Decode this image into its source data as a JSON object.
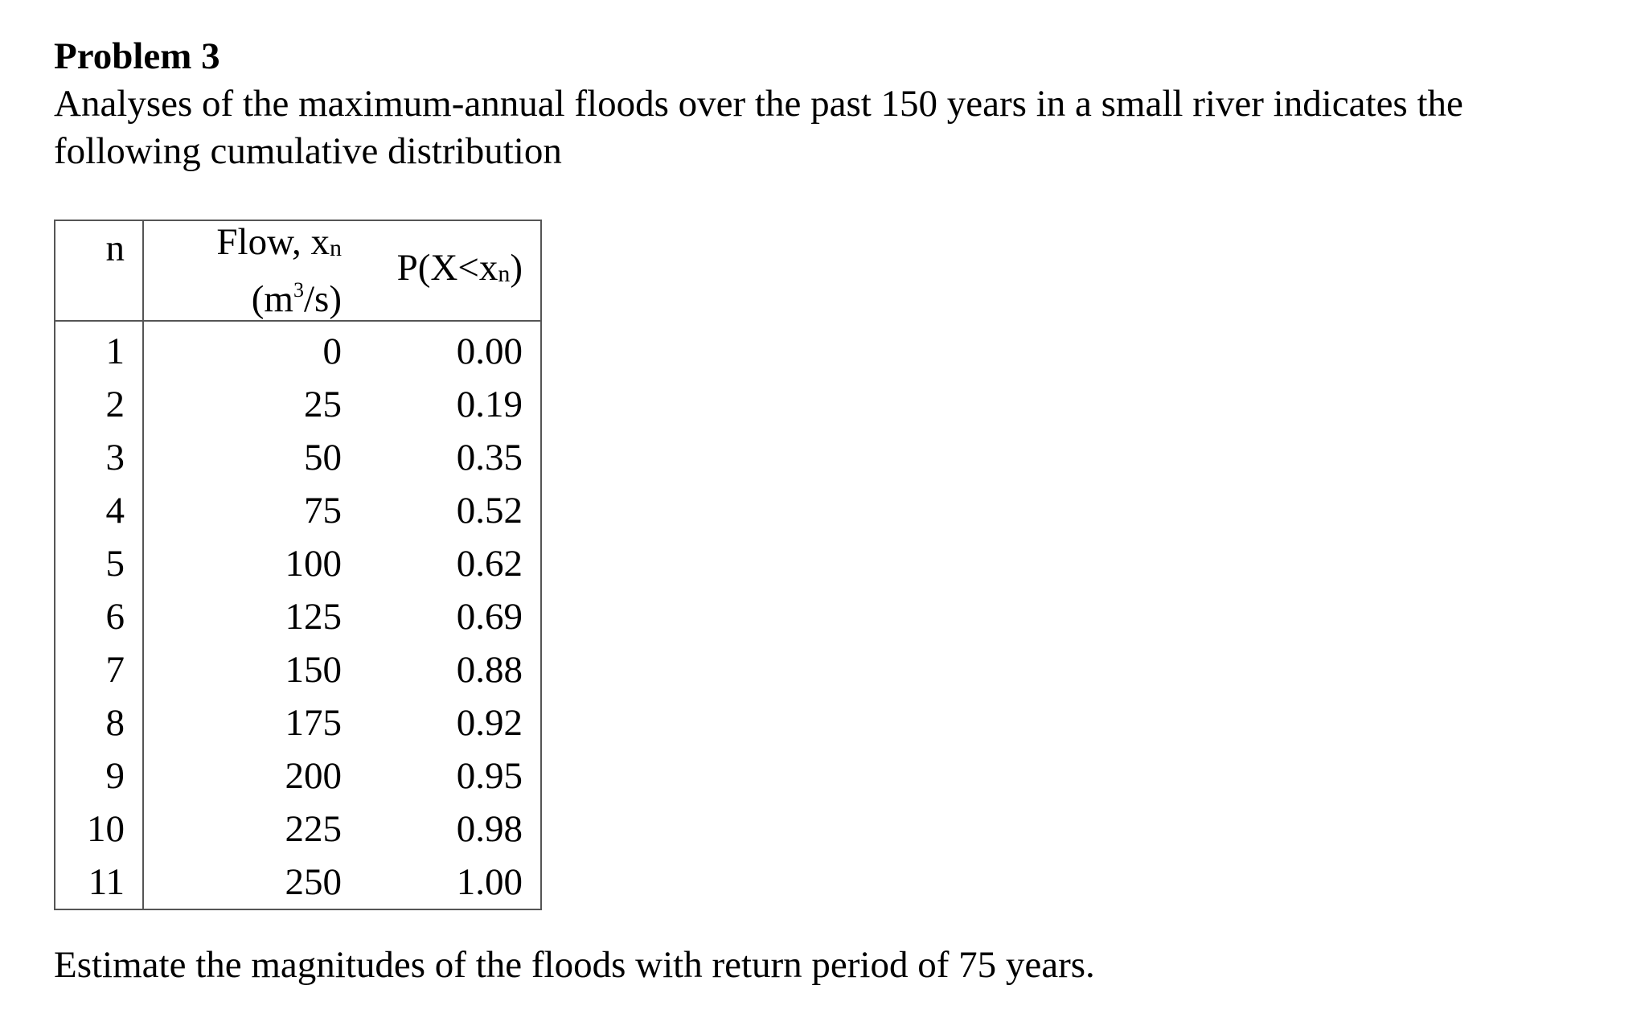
{
  "problem": {
    "title": "Problem 3",
    "intro": "Analyses of the maximum-annual floods over the past 150 years in a small river indicates the following cumulative distribution"
  },
  "table": {
    "headers": {
      "n": "n",
      "flow_label": "Flow, x",
      "flow_subscript": "n",
      "flow_units_open": "(m",
      "flow_units_sup": "3",
      "flow_units_close": "/s)",
      "prob_prefix": "P(X<x",
      "prob_subscript": "n",
      "prob_suffix": ")"
    },
    "rows": [
      {
        "n": "1",
        "flow": "0",
        "p": "0.00"
      },
      {
        "n": "2",
        "flow": "25",
        "p": "0.19"
      },
      {
        "n": "3",
        "flow": "50",
        "p": "0.35"
      },
      {
        "n": "4",
        "flow": "75",
        "p": "0.52"
      },
      {
        "n": "5",
        "flow": "100",
        "p": "0.62"
      },
      {
        "n": "6",
        "flow": "125",
        "p": "0.69"
      },
      {
        "n": "7",
        "flow": "150",
        "p": "0.88"
      },
      {
        "n": "8",
        "flow": "175",
        "p": "0.92"
      },
      {
        "n": "9",
        "flow": "200",
        "p": "0.95"
      },
      {
        "n": "10",
        "flow": "225",
        "p": "0.98"
      },
      {
        "n": "11",
        "flow": "250",
        "p": "1.00"
      }
    ]
  },
  "question": "Estimate the magnitudes of the floods with return period of 75 years."
}
